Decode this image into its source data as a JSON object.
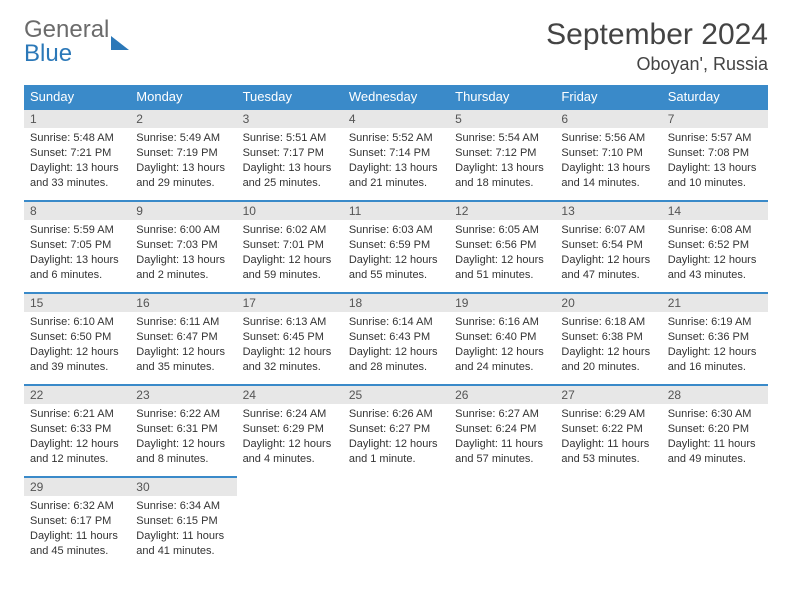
{
  "logo": {
    "line1": "General",
    "line2": "Blue"
  },
  "title": "September 2024",
  "location": "Oboyan', Russia",
  "colors": {
    "header_bg": "#3a8ac9",
    "header_fg": "#ffffff",
    "daynum_bg": "#e7e7e7",
    "rule": "#3a8ac9",
    "logo_gray": "#6b6b6b",
    "logo_blue": "#2b78b8"
  },
  "weekdays": [
    "Sunday",
    "Monday",
    "Tuesday",
    "Wednesday",
    "Thursday",
    "Friday",
    "Saturday"
  ],
  "days": [
    {
      "n": "1",
      "sr": "Sunrise: 5:48 AM",
      "ss": "Sunset: 7:21 PM",
      "d1": "Daylight: 13 hours",
      "d2": "and 33 minutes."
    },
    {
      "n": "2",
      "sr": "Sunrise: 5:49 AM",
      "ss": "Sunset: 7:19 PM",
      "d1": "Daylight: 13 hours",
      "d2": "and 29 minutes."
    },
    {
      "n": "3",
      "sr": "Sunrise: 5:51 AM",
      "ss": "Sunset: 7:17 PM",
      "d1": "Daylight: 13 hours",
      "d2": "and 25 minutes."
    },
    {
      "n": "4",
      "sr": "Sunrise: 5:52 AM",
      "ss": "Sunset: 7:14 PM",
      "d1": "Daylight: 13 hours",
      "d2": "and 21 minutes."
    },
    {
      "n": "5",
      "sr": "Sunrise: 5:54 AM",
      "ss": "Sunset: 7:12 PM",
      "d1": "Daylight: 13 hours",
      "d2": "and 18 minutes."
    },
    {
      "n": "6",
      "sr": "Sunrise: 5:56 AM",
      "ss": "Sunset: 7:10 PM",
      "d1": "Daylight: 13 hours",
      "d2": "and 14 minutes."
    },
    {
      "n": "7",
      "sr": "Sunrise: 5:57 AM",
      "ss": "Sunset: 7:08 PM",
      "d1": "Daylight: 13 hours",
      "d2": "and 10 minutes."
    },
    {
      "n": "8",
      "sr": "Sunrise: 5:59 AM",
      "ss": "Sunset: 7:05 PM",
      "d1": "Daylight: 13 hours",
      "d2": "and 6 minutes."
    },
    {
      "n": "9",
      "sr": "Sunrise: 6:00 AM",
      "ss": "Sunset: 7:03 PM",
      "d1": "Daylight: 13 hours",
      "d2": "and 2 minutes."
    },
    {
      "n": "10",
      "sr": "Sunrise: 6:02 AM",
      "ss": "Sunset: 7:01 PM",
      "d1": "Daylight: 12 hours",
      "d2": "and 59 minutes."
    },
    {
      "n": "11",
      "sr": "Sunrise: 6:03 AM",
      "ss": "Sunset: 6:59 PM",
      "d1": "Daylight: 12 hours",
      "d2": "and 55 minutes."
    },
    {
      "n": "12",
      "sr": "Sunrise: 6:05 AM",
      "ss": "Sunset: 6:56 PM",
      "d1": "Daylight: 12 hours",
      "d2": "and 51 minutes."
    },
    {
      "n": "13",
      "sr": "Sunrise: 6:07 AM",
      "ss": "Sunset: 6:54 PM",
      "d1": "Daylight: 12 hours",
      "d2": "and 47 minutes."
    },
    {
      "n": "14",
      "sr": "Sunrise: 6:08 AM",
      "ss": "Sunset: 6:52 PM",
      "d1": "Daylight: 12 hours",
      "d2": "and 43 minutes."
    },
    {
      "n": "15",
      "sr": "Sunrise: 6:10 AM",
      "ss": "Sunset: 6:50 PM",
      "d1": "Daylight: 12 hours",
      "d2": "and 39 minutes."
    },
    {
      "n": "16",
      "sr": "Sunrise: 6:11 AM",
      "ss": "Sunset: 6:47 PM",
      "d1": "Daylight: 12 hours",
      "d2": "and 35 minutes."
    },
    {
      "n": "17",
      "sr": "Sunrise: 6:13 AM",
      "ss": "Sunset: 6:45 PM",
      "d1": "Daylight: 12 hours",
      "d2": "and 32 minutes."
    },
    {
      "n": "18",
      "sr": "Sunrise: 6:14 AM",
      "ss": "Sunset: 6:43 PM",
      "d1": "Daylight: 12 hours",
      "d2": "and 28 minutes."
    },
    {
      "n": "19",
      "sr": "Sunrise: 6:16 AM",
      "ss": "Sunset: 6:40 PM",
      "d1": "Daylight: 12 hours",
      "d2": "and 24 minutes."
    },
    {
      "n": "20",
      "sr": "Sunrise: 6:18 AM",
      "ss": "Sunset: 6:38 PM",
      "d1": "Daylight: 12 hours",
      "d2": "and 20 minutes."
    },
    {
      "n": "21",
      "sr": "Sunrise: 6:19 AM",
      "ss": "Sunset: 6:36 PM",
      "d1": "Daylight: 12 hours",
      "d2": "and 16 minutes."
    },
    {
      "n": "22",
      "sr": "Sunrise: 6:21 AM",
      "ss": "Sunset: 6:33 PM",
      "d1": "Daylight: 12 hours",
      "d2": "and 12 minutes."
    },
    {
      "n": "23",
      "sr": "Sunrise: 6:22 AM",
      "ss": "Sunset: 6:31 PM",
      "d1": "Daylight: 12 hours",
      "d2": "and 8 minutes."
    },
    {
      "n": "24",
      "sr": "Sunrise: 6:24 AM",
      "ss": "Sunset: 6:29 PM",
      "d1": "Daylight: 12 hours",
      "d2": "and 4 minutes."
    },
    {
      "n": "25",
      "sr": "Sunrise: 6:26 AM",
      "ss": "Sunset: 6:27 PM",
      "d1": "Daylight: 12 hours",
      "d2": "and 1 minute."
    },
    {
      "n": "26",
      "sr": "Sunrise: 6:27 AM",
      "ss": "Sunset: 6:24 PM",
      "d1": "Daylight: 11 hours",
      "d2": "and 57 minutes."
    },
    {
      "n": "27",
      "sr": "Sunrise: 6:29 AM",
      "ss": "Sunset: 6:22 PM",
      "d1": "Daylight: 11 hours",
      "d2": "and 53 minutes."
    },
    {
      "n": "28",
      "sr": "Sunrise: 6:30 AM",
      "ss": "Sunset: 6:20 PM",
      "d1": "Daylight: 11 hours",
      "d2": "and 49 minutes."
    },
    {
      "n": "29",
      "sr": "Sunrise: 6:32 AM",
      "ss": "Sunset: 6:17 PM",
      "d1": "Daylight: 11 hours",
      "d2": "and 45 minutes."
    },
    {
      "n": "30",
      "sr": "Sunrise: 6:34 AM",
      "ss": "Sunset: 6:15 PM",
      "d1": "Daylight: 11 hours",
      "d2": "and 41 minutes."
    }
  ]
}
